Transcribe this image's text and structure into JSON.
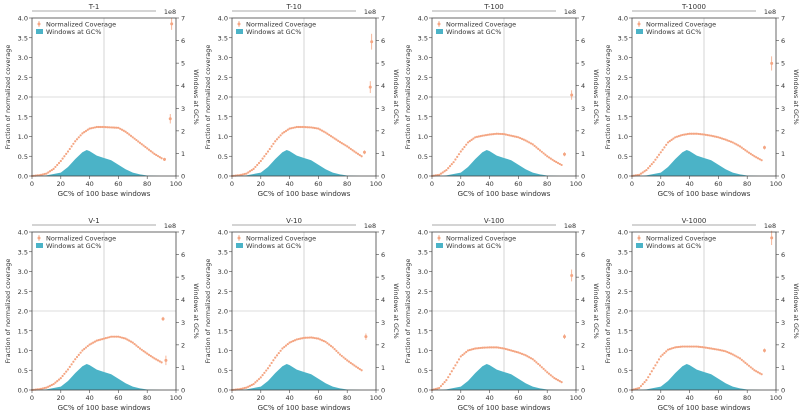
{
  "figure": {
    "legend_coverage": "Normalized Coverage",
    "legend_windows": "Windows at GC%",
    "xlabel": "GC% of 100 base windows",
    "ylabel_left": "Fraction of normalized coverage",
    "ylabel_right": "Windows at GC%",
    "right_multiplier": "1e8",
    "coverage_color": "#f4a582",
    "windows_color": "#4bb3c7",
    "guide_color": "#bbbbbb"
  },
  "chart_data": [
    {
      "type": "area",
      "title": "T-1",
      "xlim": [
        0,
        100
      ],
      "ylim": [
        0,
        4.0
      ],
      "y2lim": [
        0,
        7
      ],
      "xticks": [
        0,
        20,
        40,
        60,
        80,
        100
      ],
      "yticks": [
        0.0,
        0.5,
        1.0,
        1.5,
        2.0,
        2.5,
        3.0,
        3.5,
        4.0
      ],
      "y2ticks": [
        0,
        1,
        2,
        3,
        4,
        5,
        6,
        7
      ],
      "coverage": {
        "x": [
          0,
          5,
          10,
          15,
          20,
          25,
          30,
          35,
          40,
          45,
          50,
          55,
          60,
          65,
          70,
          75,
          80,
          85,
          90
        ],
        "y": [
          0.0,
          0.02,
          0.06,
          0.18,
          0.38,
          0.62,
          0.88,
          1.08,
          1.2,
          1.24,
          1.24,
          1.23,
          1.22,
          1.12,
          0.98,
          0.84,
          0.7,
          0.56,
          0.45
        ]
      },
      "outliers": [
        {
          "x": 92,
          "y": 0.42,
          "err": 0.04
        },
        {
          "x": 96,
          "y": 1.45,
          "err": 0.12
        },
        {
          "x": 97,
          "y": 3.85,
          "err": 0.15
        }
      ],
      "windows": {
        "x": [
          0,
          10,
          20,
          25,
          30,
          35,
          38,
          40,
          45,
          50,
          55,
          60,
          65,
          70,
          75,
          80,
          90
        ],
        "y": [
          0,
          0.03,
          0.15,
          0.4,
          0.75,
          1.05,
          1.15,
          1.1,
          0.9,
          0.8,
          0.7,
          0.5,
          0.3,
          0.15,
          0.07,
          0.02,
          0
        ]
      }
    },
    {
      "type": "area",
      "title": "T-10",
      "xlim": [
        0,
        100
      ],
      "ylim": [
        0,
        4.0
      ],
      "y2lim": [
        0,
        7
      ],
      "xticks": [
        0,
        20,
        40,
        60,
        80,
        100
      ],
      "yticks": [
        0.0,
        0.5,
        1.0,
        1.5,
        2.0,
        2.5,
        3.0,
        3.5,
        4.0
      ],
      "y2ticks": [
        0,
        1,
        2,
        3,
        4,
        5,
        6,
        7
      ],
      "coverage": {
        "x": [
          0,
          5,
          10,
          15,
          20,
          25,
          30,
          35,
          40,
          45,
          50,
          55,
          60,
          65,
          70,
          75,
          80,
          85,
          90
        ],
        "y": [
          0.0,
          0.02,
          0.06,
          0.18,
          0.38,
          0.62,
          0.88,
          1.08,
          1.2,
          1.24,
          1.24,
          1.23,
          1.2,
          1.1,
          0.98,
          0.86,
          0.75,
          0.62,
          0.5
        ]
      },
      "outliers": [
        {
          "x": 92,
          "y": 0.6,
          "err": 0.05
        },
        {
          "x": 96,
          "y": 2.25,
          "err": 0.15
        },
        {
          "x": 97,
          "y": 3.4,
          "err": 0.2
        }
      ],
      "windows": {
        "x": [
          0,
          10,
          20,
          25,
          30,
          35,
          38,
          40,
          45,
          50,
          55,
          60,
          65,
          70,
          75,
          80,
          90
        ],
        "y": [
          0,
          0.03,
          0.15,
          0.4,
          0.75,
          1.05,
          1.15,
          1.1,
          0.9,
          0.8,
          0.7,
          0.5,
          0.3,
          0.15,
          0.07,
          0.02,
          0
        ]
      }
    },
    {
      "type": "area",
      "title": "T-100",
      "xlim": [
        0,
        100
      ],
      "ylim": [
        0,
        4.0
      ],
      "y2lim": [
        0,
        7
      ],
      "xticks": [
        0,
        20,
        40,
        60,
        80,
        100
      ],
      "yticks": [
        0.0,
        0.5,
        1.0,
        1.5,
        2.0,
        2.5,
        3.0,
        3.5,
        4.0
      ],
      "y2ticks": [
        0,
        1,
        2,
        3,
        4,
        5,
        6,
        7
      ],
      "coverage": {
        "x": [
          0,
          5,
          10,
          15,
          20,
          25,
          30,
          35,
          40,
          45,
          50,
          55,
          60,
          65,
          70,
          75,
          80,
          85,
          90
        ],
        "y": [
          0.0,
          0.03,
          0.15,
          0.35,
          0.62,
          0.85,
          0.98,
          1.02,
          1.05,
          1.07,
          1.06,
          1.02,
          0.98,
          0.9,
          0.8,
          0.65,
          0.5,
          0.38,
          0.28
        ]
      },
      "outliers": [
        {
          "x": 92,
          "y": 0.55,
          "err": 0.05
        },
        {
          "x": 97,
          "y": 2.05,
          "err": 0.12
        }
      ],
      "windows": {
        "x": [
          0,
          10,
          20,
          25,
          30,
          35,
          38,
          40,
          45,
          50,
          55,
          60,
          65,
          70,
          75,
          80,
          90
        ],
        "y": [
          0,
          0.03,
          0.15,
          0.4,
          0.75,
          1.05,
          1.15,
          1.1,
          0.9,
          0.8,
          0.7,
          0.5,
          0.3,
          0.15,
          0.07,
          0.02,
          0
        ]
      }
    },
    {
      "type": "area",
      "title": "T-1000",
      "xlim": [
        0,
        100
      ],
      "ylim": [
        0,
        4.0
      ],
      "y2lim": [
        0,
        7
      ],
      "xticks": [
        0,
        20,
        40,
        60,
        80,
        100
      ],
      "yticks": [
        0.0,
        0.5,
        1.0,
        1.5,
        2.0,
        2.5,
        3.0,
        3.5,
        4.0
      ],
      "y2ticks": [
        0,
        1,
        2,
        3,
        4,
        5,
        6,
        7
      ],
      "coverage": {
        "x": [
          0,
          5,
          10,
          15,
          20,
          25,
          30,
          35,
          40,
          45,
          50,
          55,
          60,
          65,
          70,
          75,
          80,
          85,
          90
        ],
        "y": [
          0.0,
          0.03,
          0.15,
          0.35,
          0.6,
          0.85,
          0.98,
          1.04,
          1.07,
          1.07,
          1.05,
          1.02,
          0.98,
          0.92,
          0.85,
          0.75,
          0.62,
          0.5,
          0.4
        ]
      },
      "outliers": [
        {
          "x": 92,
          "y": 0.72,
          "err": 0.05
        },
        {
          "x": 97,
          "y": 2.85,
          "err": 0.18
        }
      ],
      "windows": {
        "x": [
          0,
          10,
          20,
          25,
          30,
          35,
          38,
          40,
          45,
          50,
          55,
          60,
          65,
          70,
          75,
          80,
          90
        ],
        "y": [
          0,
          0.03,
          0.15,
          0.4,
          0.75,
          1.05,
          1.15,
          1.1,
          0.9,
          0.8,
          0.7,
          0.5,
          0.3,
          0.15,
          0.07,
          0.02,
          0
        ]
      }
    },
    {
      "type": "area",
      "title": "V-1",
      "xlim": [
        0,
        100
      ],
      "ylim": [
        0,
        4.0
      ],
      "y2lim": [
        0,
        7
      ],
      "xticks": [
        0,
        20,
        40,
        60,
        80,
        100
      ],
      "yticks": [
        0.0,
        0.5,
        1.0,
        1.5,
        2.0,
        2.5,
        3.0,
        3.5,
        4.0
      ],
      "y2ticks": [
        0,
        1,
        2,
        3,
        4,
        5,
        6,
        7
      ],
      "coverage": {
        "x": [
          0,
          5,
          10,
          15,
          20,
          25,
          30,
          35,
          40,
          45,
          50,
          55,
          60,
          65,
          70,
          75,
          80,
          85,
          90
        ],
        "y": [
          0.0,
          0.02,
          0.06,
          0.15,
          0.3,
          0.52,
          0.78,
          1.0,
          1.15,
          1.25,
          1.3,
          1.35,
          1.35,
          1.3,
          1.2,
          1.05,
          0.92,
          0.8,
          0.7
        ]
      },
      "outliers": [
        {
          "x": 91,
          "y": 1.8,
          "err": 0.05
        },
        {
          "x": 93,
          "y": 0.75,
          "err": 0.12
        }
      ],
      "windows": {
        "x": [
          0,
          10,
          20,
          25,
          30,
          35,
          38,
          40,
          45,
          50,
          55,
          60,
          65,
          70,
          75,
          80,
          90
        ],
        "y": [
          0,
          0.03,
          0.15,
          0.4,
          0.75,
          1.05,
          1.15,
          1.1,
          0.9,
          0.8,
          0.7,
          0.5,
          0.3,
          0.15,
          0.07,
          0.02,
          0
        ]
      }
    },
    {
      "type": "area",
      "title": "V-10",
      "xlim": [
        0,
        100
      ],
      "ylim": [
        0,
        4.0
      ],
      "y2lim": [
        0,
        7
      ],
      "xticks": [
        0,
        20,
        40,
        60,
        80,
        100
      ],
      "yticks": [
        0.0,
        0.5,
        1.0,
        1.5,
        2.0,
        2.5,
        3.0,
        3.5,
        4.0
      ],
      "y2ticks": [
        0,
        1,
        2,
        3,
        4,
        5,
        6,
        7
      ],
      "coverage": {
        "x": [
          0,
          5,
          10,
          15,
          20,
          25,
          30,
          35,
          40,
          45,
          50,
          55,
          60,
          65,
          70,
          75,
          80,
          85,
          90
        ],
        "y": [
          0.0,
          0.02,
          0.06,
          0.15,
          0.32,
          0.55,
          0.82,
          1.05,
          1.2,
          1.28,
          1.32,
          1.33,
          1.3,
          1.22,
          1.08,
          0.9,
          0.75,
          0.62,
          0.5
        ]
      },
      "outliers": [
        {
          "x": 93,
          "y": 1.35,
          "err": 0.08
        }
      ],
      "windows": {
        "x": [
          0,
          10,
          20,
          25,
          30,
          35,
          38,
          40,
          45,
          50,
          55,
          60,
          65,
          70,
          75,
          80,
          90
        ],
        "y": [
          0,
          0.03,
          0.15,
          0.4,
          0.75,
          1.05,
          1.15,
          1.1,
          0.9,
          0.8,
          0.7,
          0.5,
          0.3,
          0.15,
          0.07,
          0.02,
          0
        ]
      }
    },
    {
      "type": "area",
      "title": "V-100",
      "xlim": [
        0,
        100
      ],
      "ylim": [
        0,
        4.0
      ],
      "y2lim": [
        0,
        7
      ],
      "xticks": [
        0,
        20,
        40,
        60,
        80,
        100
      ],
      "yticks": [
        0.0,
        0.5,
        1.0,
        1.5,
        2.0,
        2.5,
        3.0,
        3.5,
        4.0
      ],
      "y2ticks": [
        0,
        1,
        2,
        3,
        4,
        5,
        6,
        7
      ],
      "coverage": {
        "x": [
          0,
          5,
          10,
          15,
          20,
          25,
          30,
          35,
          40,
          45,
          50,
          55,
          60,
          65,
          70,
          75,
          80,
          85,
          90
        ],
        "y": [
          0.0,
          0.05,
          0.25,
          0.55,
          0.85,
          1.0,
          1.05,
          1.07,
          1.08,
          1.08,
          1.05,
          1.0,
          0.95,
          0.88,
          0.78,
          0.62,
          0.45,
          0.3,
          0.2
        ]
      },
      "outliers": [
        {
          "x": 92,
          "y": 1.35,
          "err": 0.06
        },
        {
          "x": 97,
          "y": 2.9,
          "err": 0.15
        }
      ],
      "windows": {
        "x": [
          0,
          10,
          20,
          25,
          30,
          35,
          38,
          40,
          45,
          50,
          55,
          60,
          65,
          70,
          75,
          80,
          90
        ],
        "y": [
          0,
          0.03,
          0.15,
          0.4,
          0.75,
          1.05,
          1.15,
          1.1,
          0.9,
          0.8,
          0.7,
          0.5,
          0.3,
          0.15,
          0.07,
          0.02,
          0
        ]
      }
    },
    {
      "type": "area",
      "title": "V-1000",
      "xlim": [
        0,
        100
      ],
      "ylim": [
        0,
        4.0
      ],
      "y2lim": [
        0,
        7
      ],
      "xticks": [
        0,
        20,
        40,
        60,
        80,
        100
      ],
      "yticks": [
        0.0,
        0.5,
        1.0,
        1.5,
        2.0,
        2.5,
        3.0,
        3.5,
        4.0
      ],
      "y2ticks": [
        0,
        1,
        2,
        3,
        4,
        5,
        6,
        7
      ],
      "coverage": {
        "x": [
          0,
          5,
          10,
          15,
          20,
          25,
          30,
          35,
          40,
          45,
          50,
          55,
          60,
          65,
          70,
          75,
          80,
          85,
          90
        ],
        "y": [
          0.0,
          0.05,
          0.25,
          0.55,
          0.85,
          1.02,
          1.08,
          1.1,
          1.1,
          1.1,
          1.08,
          1.05,
          1.02,
          0.98,
          0.9,
          0.8,
          0.65,
          0.5,
          0.4
        ]
      },
      "outliers": [
        {
          "x": 92,
          "y": 1.0,
          "err": 0.05
        },
        {
          "x": 97,
          "y": 3.85,
          "err": 0.18
        }
      ],
      "windows": {
        "x": [
          0,
          10,
          20,
          25,
          30,
          35,
          38,
          40,
          45,
          50,
          55,
          60,
          65,
          70,
          75,
          80,
          90
        ],
        "y": [
          0,
          0.03,
          0.15,
          0.4,
          0.75,
          1.05,
          1.15,
          1.1,
          0.9,
          0.8,
          0.7,
          0.5,
          0.3,
          0.15,
          0.07,
          0.02,
          0
        ]
      }
    }
  ]
}
